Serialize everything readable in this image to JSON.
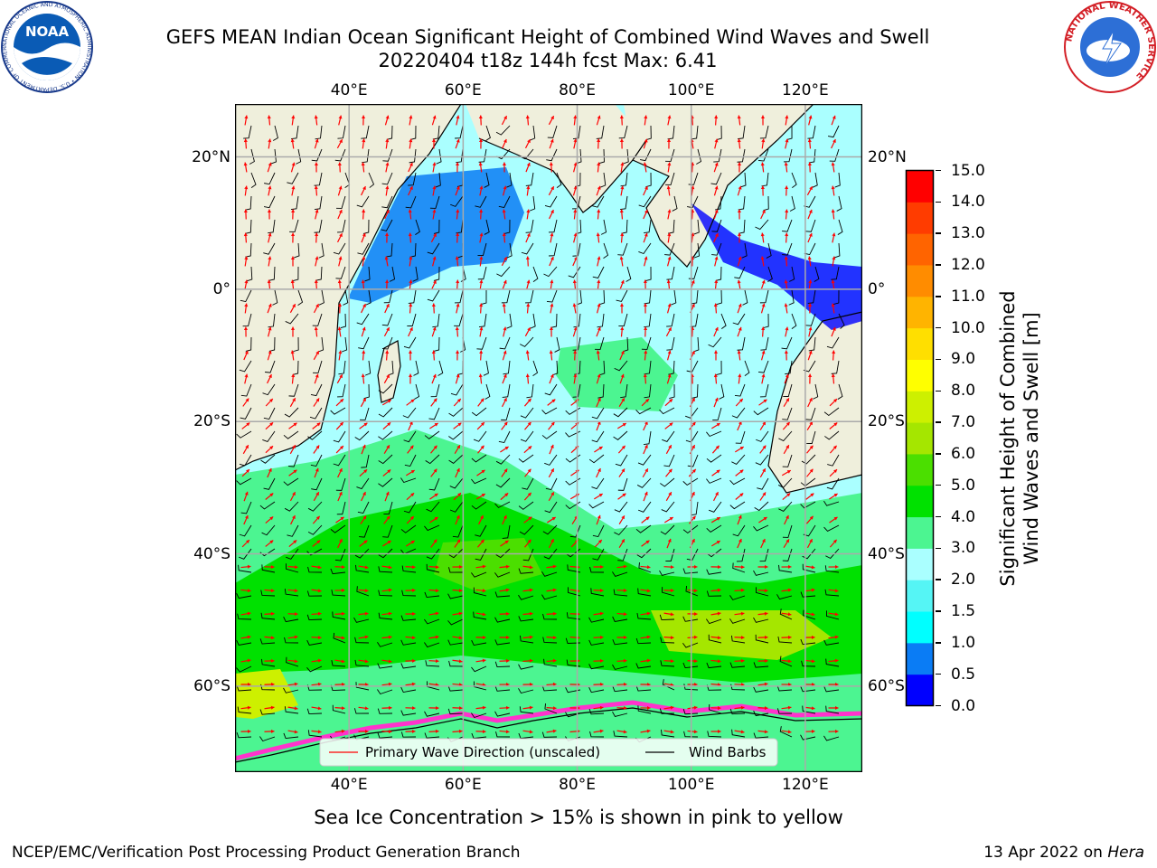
{
  "title_line1": "GEFS MEAN Indian Ocean Significant Height of Combined Wind Waves and Swell",
  "title_line2": "20220404 t18z 144h fcst   Max: 6.41",
  "logos": {
    "left_icon": "noaa-logo",
    "right_icon": "nws-logo",
    "left_text": "NOAA",
    "left_ring_text": "NATIONAL OCEANIC AND ATMOSPHERIC ADMINISTRATION • U.S. DEPARTMENT OF COMMERCE",
    "right_ring_text": "NATIONAL WEATHER SERVICE"
  },
  "map": {
    "lon_labels": [
      "40°E",
      "60°E",
      "80°E",
      "100°E",
      "120°E"
    ],
    "lat_labels": [
      "20°N",
      "0°",
      "20°S",
      "40°S",
      "60°S"
    ],
    "lon_values": [
      40,
      60,
      80,
      100,
      120
    ],
    "lat_values": [
      20,
      0,
      -20,
      -40,
      -60
    ],
    "extent": {
      "lon_min": 20,
      "lon_max": 130,
      "lat_min": -73,
      "lat_max": 28
    },
    "land_color": "#efefdc",
    "legend": {
      "wave_label": "Primary Wave Direction (unscaled)",
      "wind_label": "Wind Barbs",
      "wave_color": "#ff0000",
      "wind_color": "#000000"
    }
  },
  "colorbar": {
    "label_line1": "Significant Height of Combined",
    "label_line2": "Wind Waves and Swell [m]",
    "ticks": [
      "0.0",
      "0.5",
      "1.0",
      "1.5",
      "2.0",
      "3.0",
      "4.0",
      "5.0",
      "6.0",
      "7.0",
      "8.0",
      "9.0",
      "10.0",
      "11.0",
      "12.0",
      "13.0",
      "14.0",
      "15.0"
    ],
    "colors": [
      "#0000ff",
      "#0a7cf5",
      "#00ffff",
      "#55f5f5",
      "#aaffff",
      "#4cf591",
      "#00e100",
      "#4bdf00",
      "#a5e600",
      "#cdf000",
      "#ffff00",
      "#ffdf00",
      "#ffb400",
      "#ff8c00",
      "#ff6400",
      "#ff3c00",
      "#ff0000"
    ]
  },
  "caption": "Sea Ice Concentration > 15% is shown in pink to yellow",
  "footer_left": "NCEP/EMC/Verification Post Processing Product Generation Branch",
  "footer_right_prefix": "13 Apr 2022 on ",
  "footer_right_host": "Hera"
}
